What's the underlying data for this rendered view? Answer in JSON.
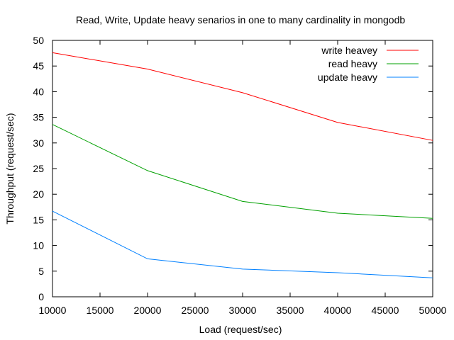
{
  "chart_data": {
    "type": "line",
    "title": "Read, Write, Update heavy senarios in one to many cardinality in mongodb",
    "xlabel": "Load (request/sec)",
    "ylabel": "Throughput (request/sec)",
    "xlim": [
      10000,
      50000
    ],
    "ylim": [
      0,
      50
    ],
    "xticks": [
      10000,
      15000,
      20000,
      25000,
      30000,
      35000,
      40000,
      45000,
      50000
    ],
    "yticks": [
      0,
      5,
      10,
      15,
      20,
      25,
      30,
      35,
      40,
      45,
      50
    ],
    "grid": false,
    "legend_position": "top-right",
    "x": [
      10000,
      20000,
      30000,
      40000,
      50000
    ],
    "series": [
      {
        "name": "write heavey",
        "color": "#ff0000",
        "values": [
          47.6,
          44.4,
          39.8,
          34.0,
          30.5
        ]
      },
      {
        "name": "read heavy",
        "color": "#00a000",
        "values": [
          33.6,
          24.6,
          18.6,
          16.3,
          15.3
        ]
      },
      {
        "name": "update heavy",
        "color": "#0080ff",
        "values": [
          16.7,
          7.4,
          5.4,
          4.7,
          3.7
        ]
      }
    ]
  }
}
